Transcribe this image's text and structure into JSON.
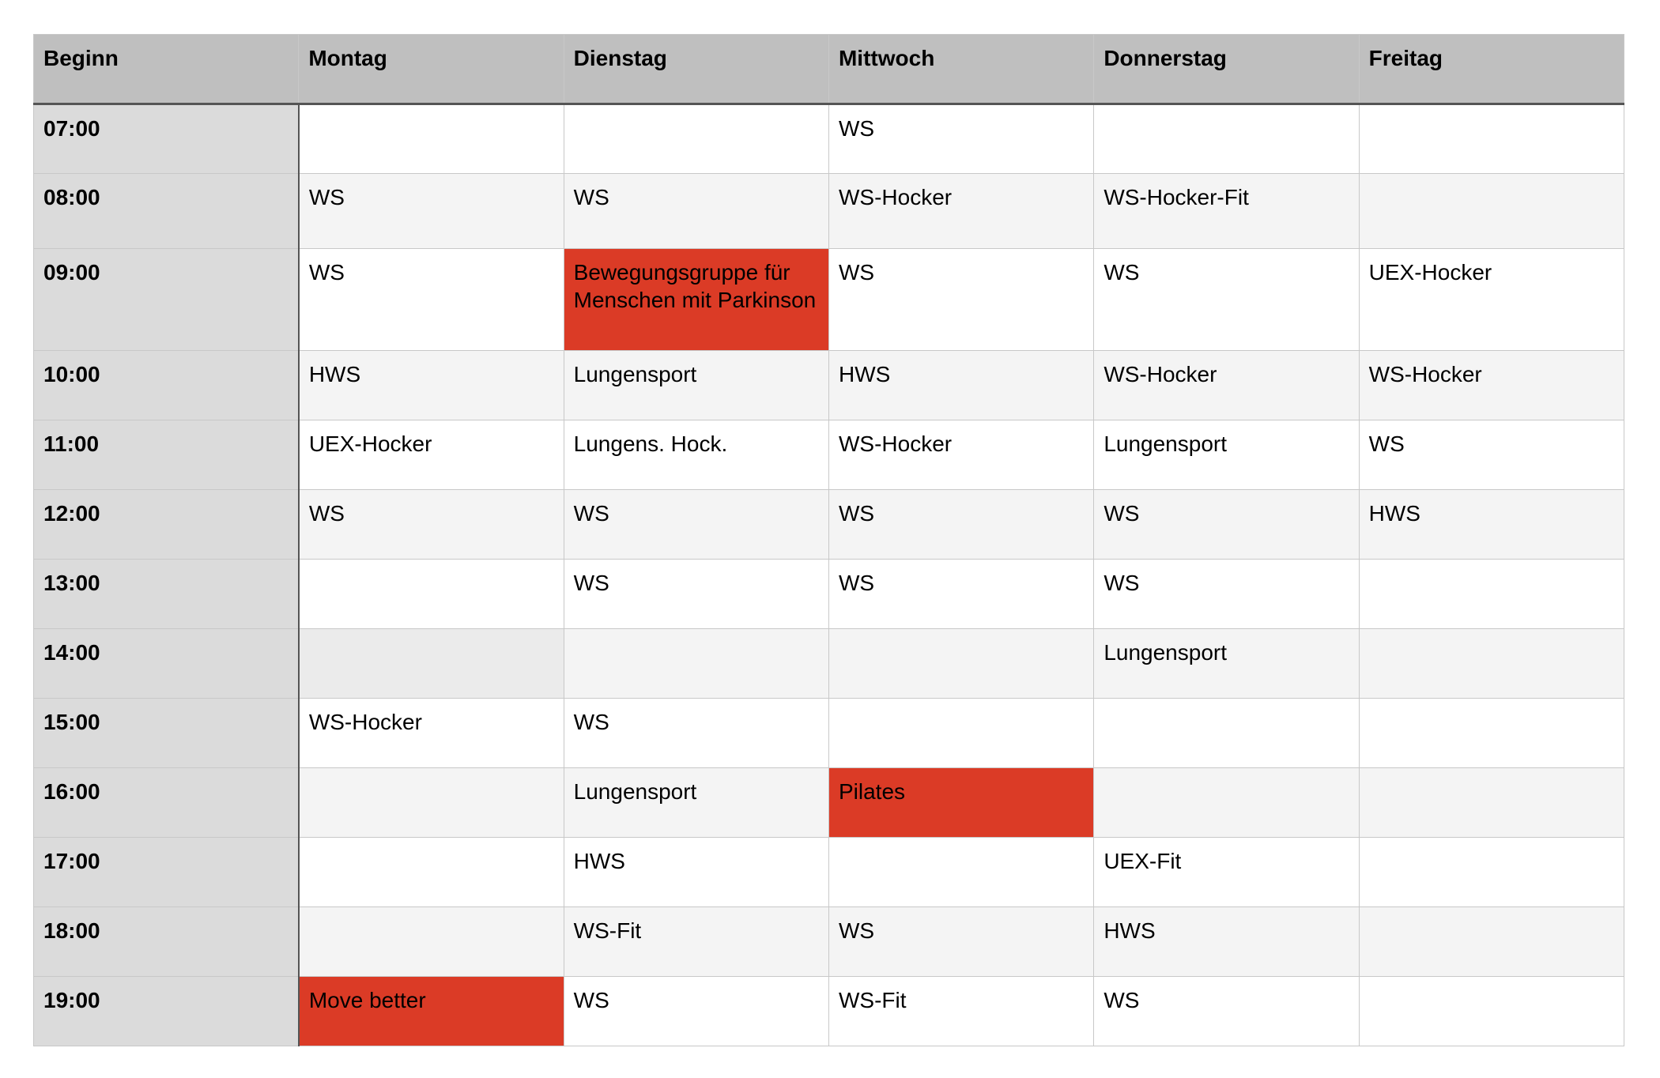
{
  "colors": {
    "highlight": "#db3b26",
    "header": "#bfbfbf",
    "time_column": "#dbdbdb"
  },
  "headers": [
    "Beginn",
    "Montag",
    "Dienstag",
    "Mittwoch",
    "Donnerstag",
    "Freitag"
  ],
  "rows": [
    {
      "time": "07:00",
      "cells": [
        "",
        "",
        "WS",
        "",
        ""
      ]
    },
    {
      "time": "08:00",
      "cells": [
        "WS",
        "WS",
        "WS-Hocker",
        "WS-Hocker-Fit",
        ""
      ]
    },
    {
      "time": "09:00",
      "cells": [
        "WS",
        "Bewegungsgruppe für Menschen mit Parkinson",
        "WS",
        "WS",
        "UEX-Hocker"
      ],
      "highlight": [
        1
      ]
    },
    {
      "time": "10:00",
      "cells": [
        "HWS",
        "Lungensport",
        "HWS",
        "WS-Hocker",
        "WS-Hocker"
      ]
    },
    {
      "time": "11:00",
      "cells": [
        "UEX-Hocker",
        "Lungens. Hock.",
        "WS-Hocker",
        "Lungensport",
        "WS"
      ]
    },
    {
      "time": "12:00",
      "cells": [
        "WS",
        "WS",
        "WS",
        "WS",
        "HWS"
      ]
    },
    {
      "time": "13:00",
      "cells": [
        "",
        "WS",
        "WS",
        "WS",
        ""
      ]
    },
    {
      "time": "14:00",
      "cells": [
        "",
        "",
        "",
        "Lungensport",
        ""
      ]
    },
    {
      "time": "15:00",
      "cells": [
        "WS-Hocker",
        "WS",
        "",
        "",
        ""
      ]
    },
    {
      "time": "16:00",
      "cells": [
        "",
        "Lungensport",
        "Pilates",
        "",
        ""
      ],
      "highlight": [
        2
      ]
    },
    {
      "time": "17:00",
      "cells": [
        "",
        "HWS",
        "",
        "UEX-Fit",
        ""
      ]
    },
    {
      "time": "18:00",
      "cells": [
        "",
        "WS-Fit",
        "WS",
        "HWS",
        ""
      ]
    },
    {
      "time": "19:00",
      "cells": [
        "Move better",
        "WS",
        "WS-Fit",
        "WS",
        ""
      ],
      "highlight": [
        0
      ]
    }
  ]
}
